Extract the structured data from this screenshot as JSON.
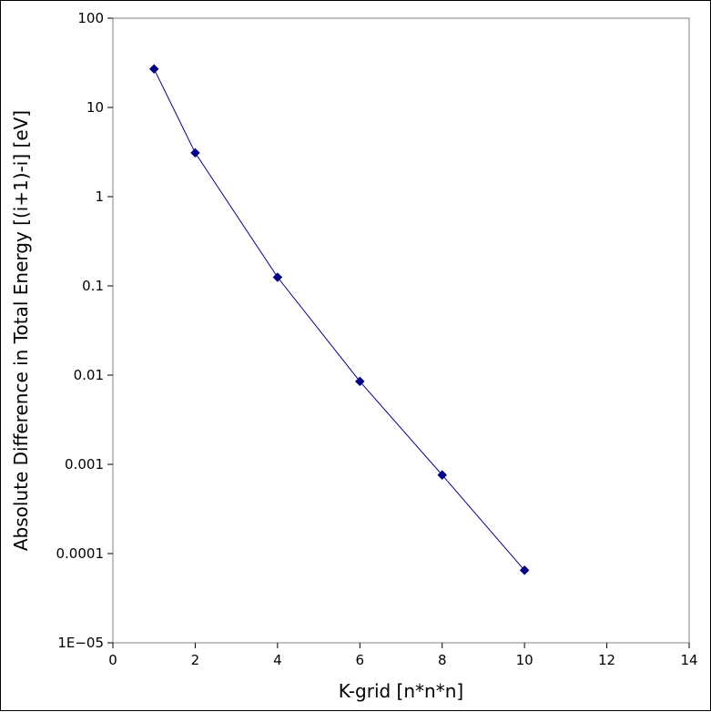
{
  "chart_data": {
    "type": "line",
    "title": "",
    "xlabel": "K-grid [n*n*n]",
    "ylabel": "Absolute Difference in Total Energy [(i+1)-i] [eV]",
    "xlim": [
      0,
      14
    ],
    "ylim": [
      1e-05,
      100
    ],
    "yscale": "log",
    "grid": false,
    "legend": "none",
    "x_ticks": [
      0,
      2,
      4,
      6,
      8,
      10,
      12,
      14
    ],
    "x_tick_labels": [
      "0",
      "2",
      "4",
      "6",
      "8",
      "10",
      "12",
      "14"
    ],
    "y_ticks": [
      1e-05,
      0.0001,
      0.001,
      0.01,
      0.1,
      1,
      10,
      100
    ],
    "y_tick_labels": [
      "1E−05",
      "0.0001",
      "0.001",
      "0.01",
      "0.1",
      "1",
      "10",
      "100"
    ],
    "series": [
      {
        "color": "#000080",
        "marker": "diamond",
        "x": [
          1,
          2,
          4,
          6,
          8,
          10
        ],
        "y": [
          27,
          3.1,
          0.125,
          0.0085,
          0.00076,
          6.5e-05
        ]
      }
    ]
  }
}
